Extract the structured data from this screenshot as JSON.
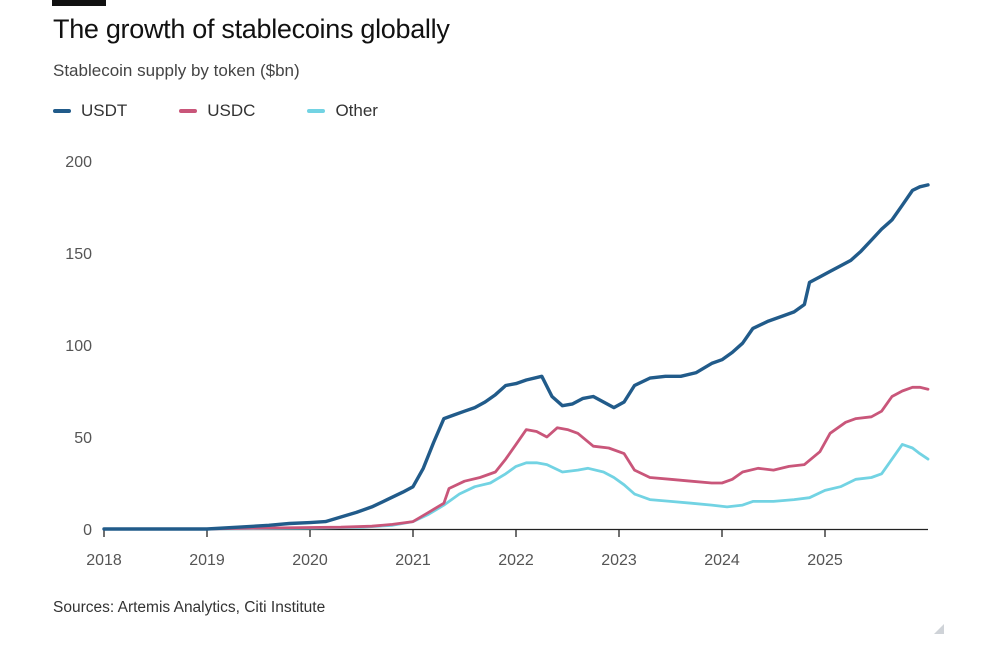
{
  "header": {
    "title": "The growth of stablecoins globally",
    "subtitle": "Stablecoin supply by token ($bn)"
  },
  "footer": {
    "source": "Sources: Artemis Analytics, Citi Institute"
  },
  "colors": {
    "USDT": "#215b8a",
    "USDC": "#c9567a",
    "Other": "#72d3e3",
    "axis": "#222222",
    "grid": "#d9d9d9"
  },
  "chart_data": {
    "type": "line",
    "title": "The growth of stablecoins globally",
    "ylabel": "Stablecoin supply by token ($bn)",
    "xlabel": "",
    "ylim": [
      0,
      200
    ],
    "xlim": [
      2018,
      2026
    ],
    "yticks": [
      0,
      50,
      100,
      150,
      200
    ],
    "xticks": [
      "2018",
      "2019",
      "2020",
      "2021",
      "2022",
      "2023",
      "2024",
      "2025"
    ],
    "legend_position": "top-left",
    "series": [
      {
        "name": "USDT",
        "points": [
          [
            2018.0,
            0
          ],
          [
            2018.5,
            0
          ],
          [
            2019.0,
            0
          ],
          [
            2019.3,
            1
          ],
          [
            2019.6,
            2
          ],
          [
            2019.8,
            3
          ],
          [
            2020.0,
            3.5
          ],
          [
            2020.15,
            4
          ],
          [
            2020.3,
            6.5
          ],
          [
            2020.45,
            9
          ],
          [
            2020.6,
            12
          ],
          [
            2020.75,
            16
          ],
          [
            2020.9,
            20
          ],
          [
            2021.0,
            23
          ],
          [
            2021.1,
            33
          ],
          [
            2021.2,
            47
          ],
          [
            2021.3,
            60
          ],
          [
            2021.4,
            62
          ],
          [
            2021.5,
            64
          ],
          [
            2021.6,
            66
          ],
          [
            2021.7,
            69
          ],
          [
            2021.8,
            73
          ],
          [
            2021.9,
            78
          ],
          [
            2022.0,
            79
          ],
          [
            2022.1,
            81
          ],
          [
            2022.25,
            83
          ],
          [
            2022.35,
            72
          ],
          [
            2022.45,
            67
          ],
          [
            2022.55,
            68
          ],
          [
            2022.65,
            71
          ],
          [
            2022.75,
            72
          ],
          [
            2022.85,
            69
          ],
          [
            2022.95,
            66
          ],
          [
            2023.05,
            69
          ],
          [
            2023.15,
            78
          ],
          [
            2023.3,
            82
          ],
          [
            2023.45,
            83
          ],
          [
            2023.6,
            83
          ],
          [
            2023.75,
            85
          ],
          [
            2023.9,
            90
          ],
          [
            2024.0,
            92
          ],
          [
            2024.1,
            96
          ],
          [
            2024.2,
            101
          ],
          [
            2024.3,
            109
          ],
          [
            2024.45,
            113
          ],
          [
            2024.6,
            116
          ],
          [
            2024.7,
            118
          ],
          [
            2024.8,
            122
          ],
          [
            2024.85,
            134
          ],
          [
            2024.95,
            137
          ],
          [
            2025.05,
            140
          ],
          [
            2025.15,
            143
          ],
          [
            2025.25,
            146
          ],
          [
            2025.35,
            151
          ],
          [
            2025.45,
            157
          ],
          [
            2025.55,
            163
          ],
          [
            2025.65,
            168
          ],
          [
            2025.75,
            176
          ],
          [
            2025.85,
            184
          ],
          [
            2025.92,
            186
          ],
          [
            2026.0,
            187
          ]
        ]
      },
      {
        "name": "USDC",
        "points": [
          [
            2018.0,
            0
          ],
          [
            2019.0,
            0
          ],
          [
            2019.5,
            0.5
          ],
          [
            2020.0,
            0.8
          ],
          [
            2020.3,
            1
          ],
          [
            2020.6,
            1.5
          ],
          [
            2020.8,
            2.5
          ],
          [
            2021.0,
            4
          ],
          [
            2021.15,
            9
          ],
          [
            2021.3,
            14
          ],
          [
            2021.35,
            22
          ],
          [
            2021.5,
            26
          ],
          [
            2021.65,
            28
          ],
          [
            2021.8,
            31
          ],
          [
            2021.9,
            38
          ],
          [
            2022.0,
            46
          ],
          [
            2022.1,
            54
          ],
          [
            2022.2,
            53
          ],
          [
            2022.3,
            50
          ],
          [
            2022.4,
            55
          ],
          [
            2022.5,
            54
          ],
          [
            2022.6,
            52
          ],
          [
            2022.75,
            45
          ],
          [
            2022.9,
            44
          ],
          [
            2023.05,
            41
          ],
          [
            2023.15,
            32
          ],
          [
            2023.3,
            28
          ],
          [
            2023.5,
            27
          ],
          [
            2023.7,
            26
          ],
          [
            2023.9,
            25
          ],
          [
            2024.0,
            25
          ],
          [
            2024.1,
            27
          ],
          [
            2024.2,
            31
          ],
          [
            2024.35,
            33
          ],
          [
            2024.5,
            32
          ],
          [
            2024.65,
            34
          ],
          [
            2024.8,
            35
          ],
          [
            2024.95,
            42
          ],
          [
            2025.05,
            52
          ],
          [
            2025.2,
            58
          ],
          [
            2025.3,
            60
          ],
          [
            2025.45,
            61
          ],
          [
            2025.55,
            64
          ],
          [
            2025.65,
            72
          ],
          [
            2025.75,
            75
          ],
          [
            2025.85,
            77
          ],
          [
            2025.92,
            77
          ],
          [
            2026.0,
            76
          ]
        ]
      },
      {
        "name": "Other",
        "points": [
          [
            2018.0,
            0
          ],
          [
            2019.0,
            0
          ],
          [
            2020.0,
            0.5
          ],
          [
            2020.5,
            1
          ],
          [
            2020.8,
            2
          ],
          [
            2021.0,
            4
          ],
          [
            2021.15,
            8
          ],
          [
            2021.3,
            13
          ],
          [
            2021.45,
            19
          ],
          [
            2021.6,
            23
          ],
          [
            2021.75,
            25
          ],
          [
            2021.9,
            30
          ],
          [
            2022.0,
            34
          ],
          [
            2022.1,
            36
          ],
          [
            2022.2,
            36
          ],
          [
            2022.3,
            35
          ],
          [
            2022.45,
            31
          ],
          [
            2022.6,
            32
          ],
          [
            2022.7,
            33
          ],
          [
            2022.85,
            31
          ],
          [
            2022.95,
            28
          ],
          [
            2023.05,
            24
          ],
          [
            2023.15,
            19
          ],
          [
            2023.3,
            16
          ],
          [
            2023.5,
            15
          ],
          [
            2023.7,
            14
          ],
          [
            2023.9,
            13
          ],
          [
            2024.05,
            12
          ],
          [
            2024.2,
            13
          ],
          [
            2024.3,
            15
          ],
          [
            2024.5,
            15
          ],
          [
            2024.7,
            16
          ],
          [
            2024.85,
            17
          ],
          [
            2025.0,
            21
          ],
          [
            2025.15,
            23
          ],
          [
            2025.3,
            27
          ],
          [
            2025.45,
            28
          ],
          [
            2025.55,
            30
          ],
          [
            2025.65,
            38
          ],
          [
            2025.75,
            46
          ],
          [
            2025.85,
            44
          ],
          [
            2025.92,
            41
          ],
          [
            2026.0,
            38
          ]
        ]
      }
    ]
  }
}
